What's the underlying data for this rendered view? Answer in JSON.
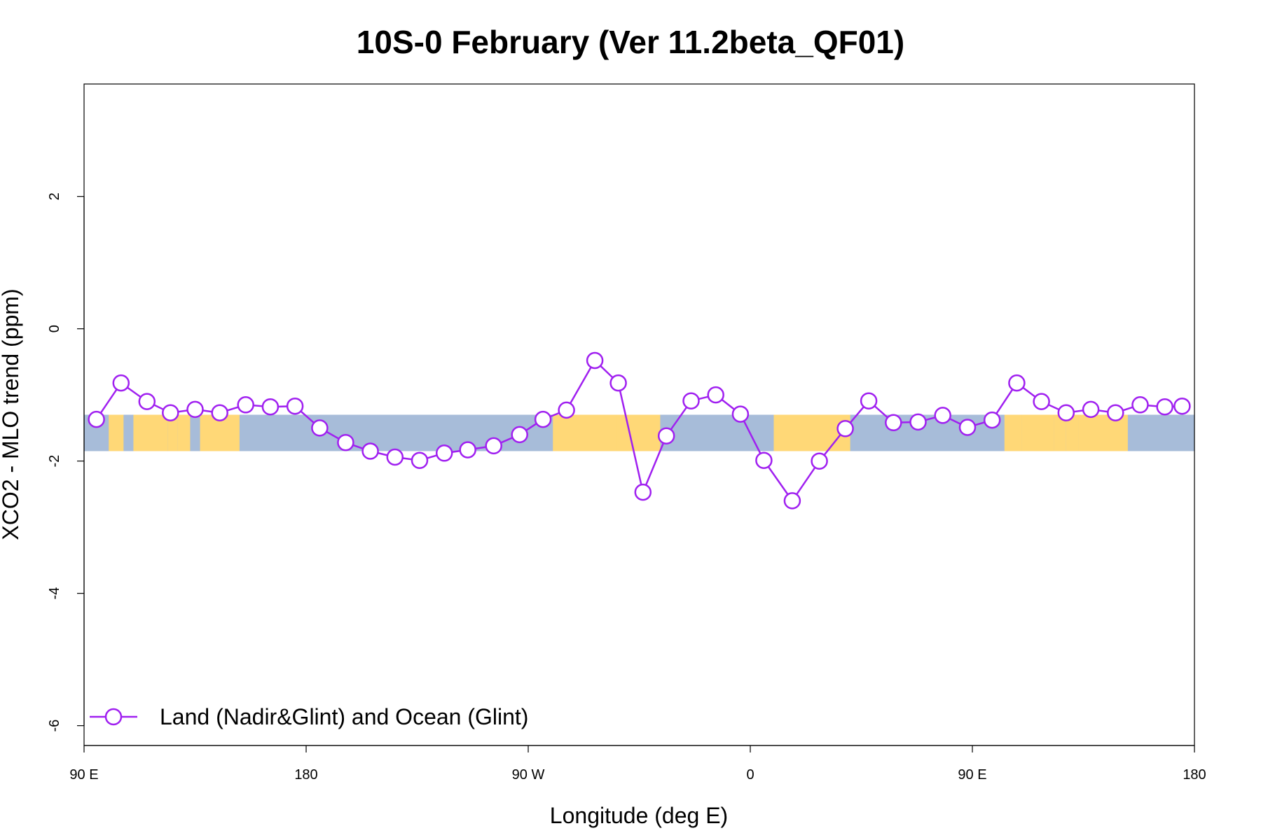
{
  "chart_data": {
    "type": "line",
    "title": "10S-0 February (Ver 11.2beta_QF01)",
    "xlabel": "Longitude (deg E)",
    "ylabel": "XCO2 - MLO trend (ppm)",
    "xlim": [
      90,
      540
    ],
    "ylim": [
      -6.3,
      3.7
    ],
    "x_ticks": [
      {
        "value": 90,
        "label": "90 E"
      },
      {
        "value": 180,
        "label": "180"
      },
      {
        "value": 270,
        "label": "90 W"
      },
      {
        "value": 360,
        "label": "0"
      },
      {
        "value": 450,
        "label": "90 E"
      },
      {
        "value": 540,
        "label": "180"
      }
    ],
    "y_ticks": [
      {
        "value": -6,
        "label": "-6"
      },
      {
        "value": -4,
        "label": "-4"
      },
      {
        "value": -2,
        "label": "-2"
      },
      {
        "value": 0,
        "label": "0"
      },
      {
        "value": 2,
        "label": "2"
      }
    ],
    "grid": false,
    "legend_position": "bottom-left",
    "background_band": {
      "y_range": [
        -1.85,
        -1.3
      ],
      "ocean_color": "#a7bcd9",
      "land_color": "#ffd877",
      "land_segments_x": [
        [
          100,
          106
        ],
        [
          110,
          119
        ],
        [
          118.5,
          124
        ],
        [
          124,
          128
        ],
        [
          128,
          133
        ],
        [
          137,
          153
        ],
        [
          280,
          283
        ],
        [
          282,
          323.5
        ],
        [
          306,
          316
        ],
        [
          369.5,
          400.5
        ],
        [
          463,
          470
        ],
        [
          470,
          483
        ],
        [
          475,
          483
        ],
        [
          483,
          488
        ],
        [
          488,
          493
        ],
        [
          493,
          513
        ]
      ]
    },
    "series": [
      {
        "name": "Land (Nadir&Glint) and Ocean (Glint)",
        "color": "#a020f0",
        "x": [
          95,
          105,
          115.5,
          125,
          135,
          145,
          155.5,
          165.5,
          175.5,
          185.5,
          196,
          206,
          216,
          226,
          236,
          245.5,
          256,
          266.5,
          276,
          285.5,
          297,
          306.5,
          316.5,
          326,
          336,
          346,
          356,
          365.5,
          377,
          388,
          398.5,
          408,
          418,
          428,
          438,
          448,
          458,
          468,
          478,
          488,
          498,
          508,
          518,
          528,
          535
        ],
        "y": [
          -1.37,
          -0.82,
          -1.1,
          -1.27,
          -1.22,
          -1.27,
          -1.15,
          -1.18,
          -1.17,
          -1.5,
          -1.72,
          -1.85,
          -1.94,
          -1.99,
          -1.88,
          -1.83,
          -1.77,
          -1.6,
          -1.37,
          -1.23,
          -0.48,
          -0.82,
          -2.47,
          -1.62,
          -1.09,
          -1.0,
          -1.29,
          -1.99,
          -2.6,
          -2.0,
          -1.51,
          -1.09,
          -1.42,
          -1.41,
          -1.31,
          -1.49,
          -1.38,
          -0.82,
          -1.1,
          -1.27,
          -1.22,
          -1.27,
          -1.15,
          -1.18,
          -1.17
        ]
      }
    ]
  }
}
